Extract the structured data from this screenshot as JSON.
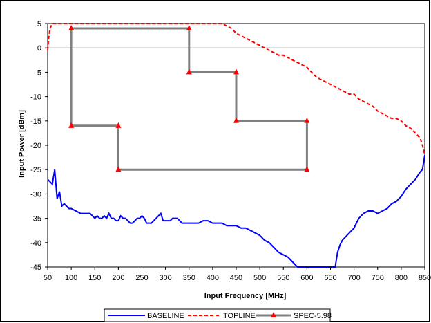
{
  "chart_data": {
    "type": "line",
    "xlabel": "Input Frequency [MHz]",
    "ylabel": "Input Power [dBm]",
    "xlim": [
      50,
      850
    ],
    "ylim": [
      -45,
      5
    ],
    "xticks": [
      50,
      100,
      150,
      200,
      250,
      300,
      350,
      400,
      450,
      500,
      550,
      600,
      650,
      700,
      750,
      800,
      850
    ],
    "yticks": [
      5,
      0,
      -5,
      -10,
      -15,
      -20,
      -25,
      -30,
      -35,
      -40,
      -45
    ],
    "xtick_labels": [
      "50",
      "100",
      "150",
      "200",
      "250",
      "300",
      "350",
      "400",
      "450",
      "500",
      "550",
      "600",
      "650",
      "700",
      "750",
      "800",
      "850"
    ],
    "ytick_labels": [
      "5",
      "0",
      "-5",
      "-10",
      "-15",
      "-20",
      "-25",
      "-30",
      "-35",
      "-40",
      "-45"
    ],
    "grid": "horizontal at 0 only",
    "legend_position": "bottom",
    "colors": {
      "baseline": "#0000FF",
      "topline": "#FF0000",
      "spec": "#808080",
      "spec_marker": "#FF0000"
    },
    "series": [
      {
        "name": "BASELINE",
        "style": "solid",
        "x": [
          50,
          55,
          60,
          65,
          70,
          75,
          80,
          85,
          90,
          95,
          100,
          110,
          120,
          130,
          140,
          150,
          155,
          160,
          165,
          170,
          175,
          180,
          185,
          190,
          195,
          200,
          205,
          210,
          215,
          220,
          225,
          230,
          235,
          240,
          245,
          250,
          255,
          260,
          265,
          270,
          275,
          280,
          285,
          290,
          295,
          300,
          305,
          310,
          315,
          320,
          325,
          330,
          335,
          340,
          345,
          350,
          360,
          370,
          380,
          390,
          400,
          410,
          420,
          430,
          440,
          450,
          460,
          470,
          480,
          490,
          500,
          510,
          520,
          530,
          540,
          550,
          560,
          570,
          580,
          590,
          600,
          610,
          620,
          630,
          640,
          650,
          660,
          665,
          670,
          675,
          680,
          690,
          700,
          705,
          710,
          720,
          730,
          740,
          750,
          760,
          770,
          780,
          790,
          800,
          810,
          820,
          830,
          840,
          845,
          850
        ],
        "y": [
          -27,
          -27.5,
          -28,
          -25,
          -31,
          -29.5,
          -32.5,
          -32,
          -32.5,
          -33,
          -33,
          -33.5,
          -34,
          -34,
          -34,
          -35,
          -34.5,
          -35,
          -35,
          -34.5,
          -35,
          -34,
          -35,
          -35,
          -35.5,
          -35.5,
          -34.5,
          -35,
          -35,
          -35.5,
          -36,
          -36,
          -35.5,
          -35,
          -35,
          -34.5,
          -35,
          -36,
          -36,
          -36,
          -35.5,
          -35,
          -34.5,
          -34,
          -35.5,
          -35.5,
          -35.5,
          -35.5,
          -35,
          -35,
          -35,
          -35.5,
          -36,
          -36,
          -36,
          -36,
          -36,
          -36,
          -35.5,
          -35.5,
          -36,
          -36,
          -36,
          -36.5,
          -36.5,
          -36.5,
          -37,
          -37,
          -37.5,
          -38,
          -38.5,
          -39.5,
          -40,
          -41,
          -42,
          -42.5,
          -43,
          -44,
          -45,
          -45,
          -45,
          -45,
          -45,
          -45,
          -45,
          -45,
          -45,
          -42,
          -40.5,
          -39.5,
          -39,
          -38,
          -37,
          -36,
          -35,
          -34,
          -33.5,
          -33.5,
          -34,
          -33.5,
          -33,
          -32,
          -31.5,
          -30.5,
          -29,
          -28,
          -27,
          -25.5,
          -25,
          -22
        ]
      },
      {
        "name": "TOPLINE",
        "style": "dashed",
        "x": [
          50,
          52,
          55,
          60,
          100,
          150,
          200,
          250,
          300,
          350,
          400,
          420,
          430,
          440,
          450,
          460,
          470,
          480,
          490,
          500,
          510,
          520,
          530,
          540,
          550,
          560,
          570,
          580,
          590,
          600,
          610,
          620,
          630,
          640,
          650,
          660,
          670,
          680,
          690,
          700,
          710,
          720,
          730,
          740,
          750,
          760,
          770,
          780,
          790,
          800,
          810,
          820,
          830,
          840,
          845,
          850
        ],
        "y": [
          -0.5,
          2,
          4,
          5,
          5,
          5,
          5,
          5,
          5,
          5,
          5,
          5,
          4.5,
          4,
          3,
          2.5,
          2,
          1.5,
          1,
          0.5,
          0,
          -0.5,
          -1,
          -1.5,
          -1.5,
          -2,
          -2.5,
          -3,
          -3.5,
          -4,
          -5,
          -6,
          -6.5,
          -7,
          -7.5,
          -8,
          -8.5,
          -9,
          -9.5,
          -9.5,
          -10.5,
          -11,
          -11.5,
          -12,
          -13,
          -13.5,
          -14,
          -14.5,
          -14.5,
          -15,
          -16,
          -16.5,
          -17.5,
          -18.5,
          -20,
          -22
        ]
      },
      {
        "name": "SPEC-5.98",
        "style": "solid-marker",
        "x": [
          100,
          100,
          200,
          200,
          600,
          600,
          450,
          450,
          350,
          350,
          100
        ],
        "y": [
          4,
          -16,
          -16,
          -25,
          -25,
          -15,
          -15,
          -5,
          -5,
          4,
          4
        ]
      }
    ]
  }
}
